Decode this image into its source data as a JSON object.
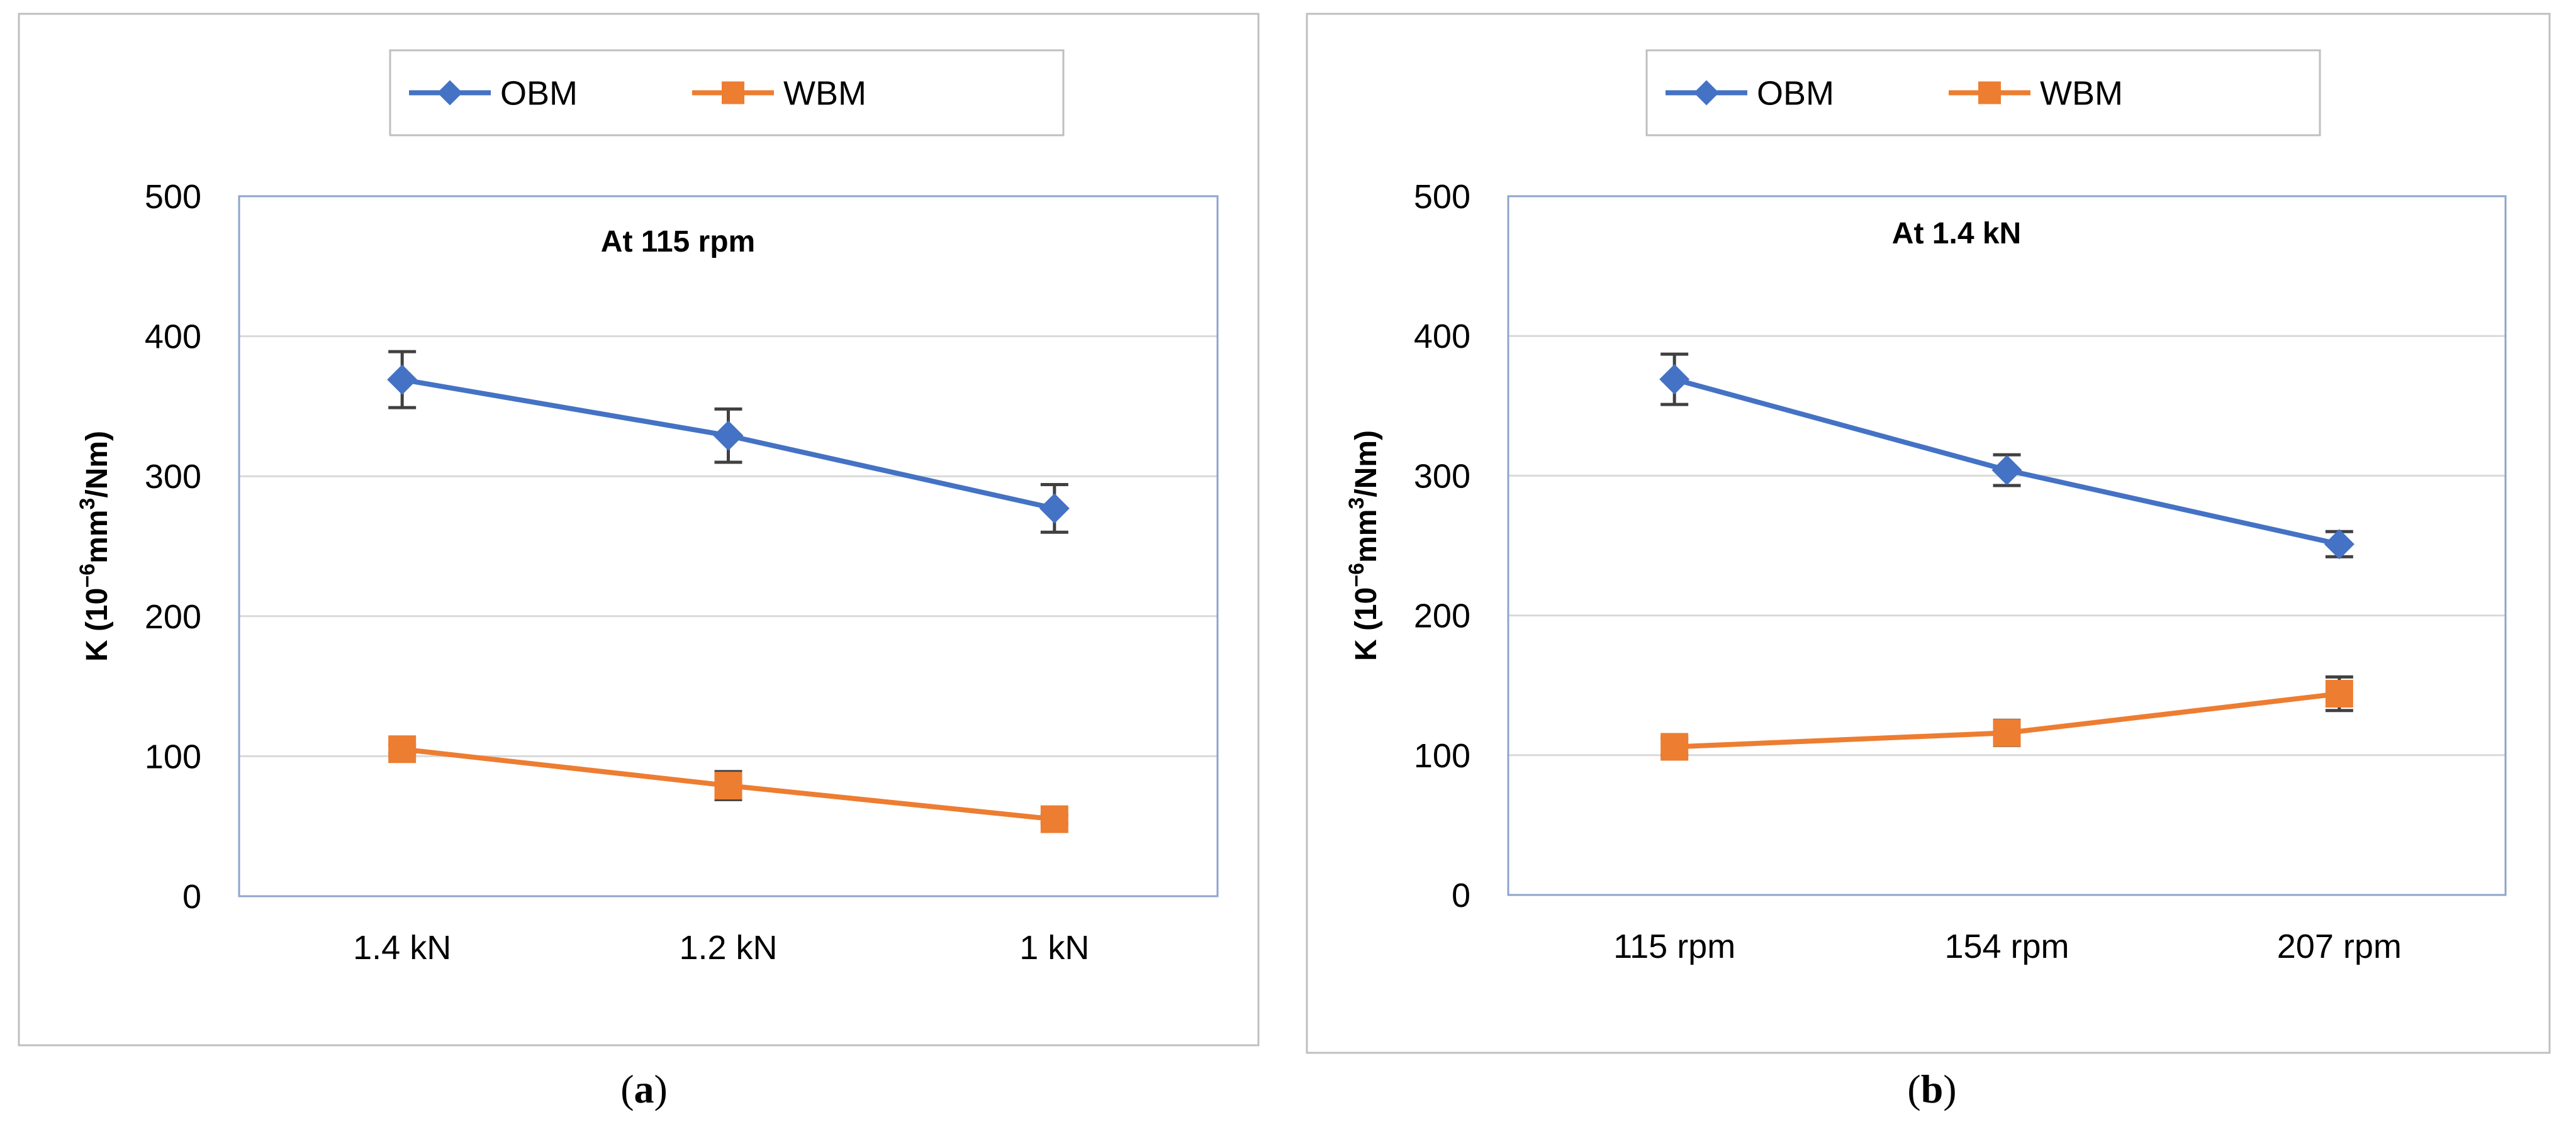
{
  "chart_data": [
    {
      "id": "a",
      "type": "line",
      "panel_label": "a",
      "annotation": "At 115 rpm",
      "ylabel_prefix": "K (10",
      "ylabel_sup": "−6",
      "ylabel_mid": "mm",
      "ylabel_sup2": "3",
      "ylabel_suffix": "/Nm)",
      "xlabel": "",
      "ylim": [
        0,
        500
      ],
      "yticks": [
        0,
        100,
        200,
        300,
        400,
        500
      ],
      "grid": true,
      "legend_position": "top-center",
      "categories": [
        "1.4 kN",
        "1.2 kN",
        "1 kN"
      ],
      "series": [
        {
          "name": "OBM",
          "color": "#4472C4",
          "marker": "diamond",
          "values": [
            369,
            329,
            277
          ],
          "errors": [
            20,
            19,
            17
          ]
        },
        {
          "name": "WBM",
          "color": "#ED7D31",
          "marker": "square",
          "values": [
            105,
            79,
            55
          ],
          "errors": [
            3,
            10,
            3
          ]
        }
      ]
    },
    {
      "id": "b",
      "type": "line",
      "panel_label": "b",
      "annotation": "At 1.4 kN",
      "ylabel_prefix": "K (10",
      "ylabel_sup": "−6",
      "ylabel_mid": "mm",
      "ylabel_sup2": "3",
      "ylabel_suffix": "/Nm)",
      "xlabel": "",
      "ylim": [
        0,
        500
      ],
      "yticks": [
        0,
        100,
        200,
        300,
        400,
        500
      ],
      "grid": true,
      "legend_position": "top-center",
      "categories": [
        "115 rpm",
        "154 rpm",
        "207 rpm"
      ],
      "series": [
        {
          "name": "OBM",
          "color": "#4472C4",
          "marker": "diamond",
          "values": [
            369,
            304,
            251
          ],
          "errors": [
            18,
            11,
            9
          ]
        },
        {
          "name": "WBM",
          "color": "#ED7D31",
          "marker": "square",
          "values": [
            106,
            116,
            144
          ],
          "errors": [
            6,
            9,
            12
          ]
        }
      ]
    }
  ],
  "colors": {
    "grid": "#D9D9D9",
    "axis": "#8EA4CC",
    "frame": "#BFBFBF",
    "errorbar": "#404040",
    "text": "#000000"
  }
}
